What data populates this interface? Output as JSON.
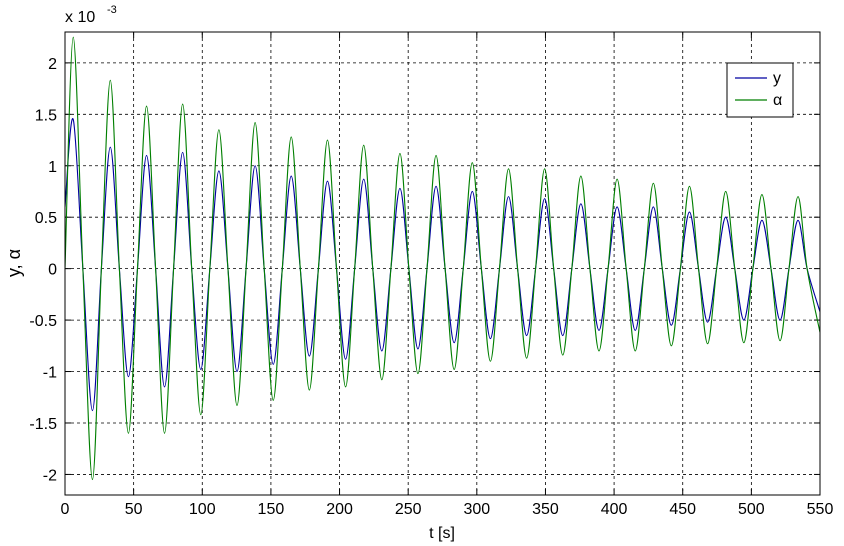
{
  "chart_data": {
    "type": "line",
    "xlabel": "t [s]",
    "ylabel": "y, α",
    "y_multiplier": "x 10",
    "y_multiplier_exponent": "-3",
    "grid": true,
    "legend": "upper right",
    "xlim": [
      0,
      550
    ],
    "xticks": [
      0,
      50,
      100,
      150,
      200,
      250,
      300,
      350,
      400,
      450,
      500,
      550
    ],
    "ylim": [
      -2.2,
      2.3
    ],
    "yticks": [
      -2,
      -1.5,
      -1,
      -0.5,
      0,
      0.5,
      1,
      1.5,
      2
    ],
    "x": [
      0,
      6,
      13,
      20,
      26.5,
      33,
      39.6,
      46.2,
      52.8,
      59.4,
      66,
      72.5,
      79.1,
      85.7,
      92.3,
      98.9,
      105.5,
      112.1,
      118.7,
      125.3,
      131.9,
      138.5,
      145.1,
      151.7,
      158.3,
      164.8,
      171.4,
      178,
      184.6,
      191.2,
      197.8,
      204.4,
      211,
      217.6,
      224.2,
      230.8,
      237.4,
      244,
      250.5,
      257.1,
      263.7,
      270.3,
      276.9,
      283.5,
      290.1,
      296.7,
      303.3,
      309.9,
      316.5,
      323.1,
      329.7,
      336.3,
      342.8,
      349.4,
      356,
      362.6,
      369.2,
      375.8,
      382.4,
      389,
      395.6,
      402.2,
      408.8,
      415.4,
      422,
      428.6,
      435.1,
      441.7,
      448.3,
      454.9,
      461.5,
      468.1,
      474.7,
      481.3,
      487.9,
      494.5,
      501.1,
      507.7,
      514.3,
      520.9,
      527.4,
      534,
      540.6,
      550
    ],
    "series": [
      {
        "name": "y",
        "color": "#0000a0",
        "values": [
          0.6,
          1.45,
          0,
          -1.38,
          0,
          1.18,
          0,
          -1.05,
          0,
          1.1,
          0,
          -1.15,
          0,
          1.13,
          0,
          -0.98,
          0,
          0.95,
          0,
          -1.0,
          0,
          1.0,
          0,
          -0.93,
          0,
          0.9,
          0,
          -0.85,
          0,
          0.85,
          0,
          -0.88,
          0,
          0.87,
          0,
          -0.8,
          0,
          0.78,
          0,
          -0.78,
          0,
          0.8,
          0,
          -0.72,
          0,
          0.75,
          0,
          -0.68,
          0,
          0.7,
          0,
          -0.65,
          0,
          0.68,
          0,
          -0.65,
          0,
          0.63,
          0,
          -0.6,
          0,
          0.6,
          0,
          -0.6,
          0,
          0.6,
          0,
          -0.55,
          0,
          0.55,
          0,
          -0.52,
          0,
          0.5,
          0,
          -0.5,
          0,
          0.47,
          0,
          -0.5,
          0,
          0.47,
          0,
          -0.42
        ]
      },
      {
        "name": "α",
        "color": "#007f00",
        "values": [
          0,
          2.25,
          0,
          -2.05,
          0,
          1.83,
          0,
          -1.6,
          0,
          1.58,
          0,
          -1.6,
          0,
          1.6,
          0,
          -1.42,
          0,
          1.35,
          0,
          -1.33,
          0,
          1.42,
          0,
          -1.28,
          0,
          1.28,
          0,
          -1.18,
          0,
          1.25,
          0,
          -1.15,
          0,
          1.2,
          0,
          -1.08,
          0,
          1.12,
          0,
          -1.02,
          0,
          1.1,
          0,
          -0.98,
          0,
          1.03,
          0,
          -0.9,
          0,
          0.97,
          0,
          -0.87,
          0,
          0.97,
          0,
          -0.84,
          0,
          0.9,
          0,
          -0.8,
          0,
          0.87,
          0,
          -0.8,
          0,
          0.83,
          0,
          -0.75,
          0,
          0.8,
          0,
          -0.73,
          0,
          0.75,
          0,
          -0.72,
          0,
          0.72,
          0,
          -0.7,
          0,
          0.7,
          0,
          -0.62
        ]
      }
    ]
  }
}
